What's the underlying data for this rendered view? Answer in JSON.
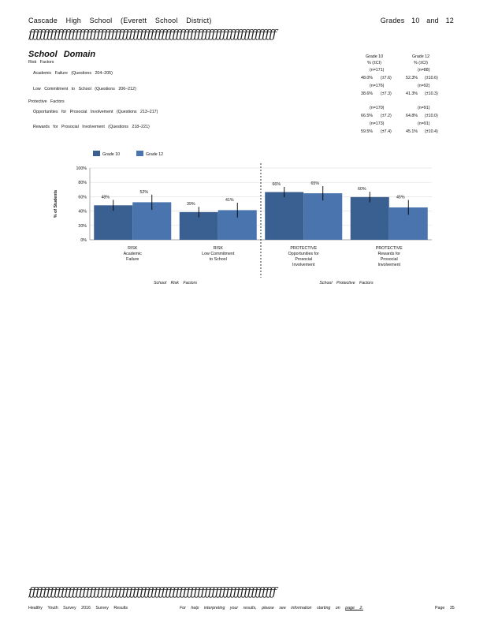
{
  "header": {
    "school": "Cascade High School (Everett School District)",
    "grades": "Grades 10 and 12"
  },
  "decorative_rule": "ƒƒƒƒƒƒƒƒƒƒƒƒƒƒƒƒƒƒƒƒƒƒƒƒƒƒƒƒƒƒƒƒƒƒƒƒƒƒƒƒƒƒƒƒƒƒƒƒƒƒƒƒƒƒƒƒƒƒƒƒƒƒƒƒƒƒƒƒƒ",
  "section": {
    "title": "School Domain",
    "risk_heading": "Risk Factors",
    "protective_heading": "Protective Factors"
  },
  "table": {
    "col_headers": [
      {
        "grade": "Grade 10",
        "unit": "% (±CI)"
      },
      {
        "grade": "Grade 12",
        "unit": "% (±CI)"
      }
    ],
    "rows": [
      {
        "label": "Academic Failure (Questions 204–205)",
        "g10_n": "(n=171)",
        "g10_val": "48.0%",
        "g10_ci": "(±7.6)",
        "g12_n": "(n=88)",
        "g12_val": "52.3%",
        "g12_ci": "(±10.6)"
      },
      {
        "label": "Low Commitment to School (Questions 206–212)",
        "g10_n": "(n=176)",
        "g10_val": "38.6%",
        "g10_ci": "(±7.3)",
        "g12_n": "(n=92)",
        "g12_val": "41.3%",
        "g12_ci": "(±10.3)"
      },
      {
        "label": "Opportunities for Prosocial Involvement (Questions 213–217)",
        "g10_n": "(n=170)",
        "g10_val": "66.5%",
        "g10_ci": "(±7.2)",
        "g12_n": "(n=91)",
        "g12_val": "64.8%",
        "g12_ci": "(±10.0)"
      },
      {
        "label": "Rewards for Prosocial Involvement (Questions 218–221)",
        "g10_n": "(n=173)",
        "g10_val": "59.5%",
        "g10_ci": "(±7.4)",
        "g12_n": "(n=91)",
        "g12_val": "45.1%",
        "g12_ci": "(±10.4)"
      }
    ]
  },
  "chart_data": {
    "type": "bar",
    "ylabel": "% of Students",
    "ylim": [
      0,
      100
    ],
    "yticks": [
      "0%",
      "20%",
      "40%",
      "60%",
      "80%",
      "100%"
    ],
    "legend_placement": "top-left",
    "categories": [
      [
        "RISK",
        "Academic",
        "Failure"
      ],
      [
        "RISK",
        "Low Commitment",
        "to School"
      ],
      [
        "PROTECTIVE",
        "Opportunities for",
        "Prosocial",
        "Involvement"
      ],
      [
        "PROTECTIVE",
        "Rewards for",
        "Prosocial",
        "Involvement"
      ]
    ],
    "series": [
      {
        "name": "Grade 10",
        "color": "#3a5f91",
        "values": [
          48.0,
          38.6,
          66.5,
          59.5
        ],
        "ci": [
          7.6,
          7.3,
          7.2,
          7.4
        ],
        "labels": [
          "48%",
          "39%",
          "66%",
          "60%"
        ]
      },
      {
        "name": "Grade 12",
        "color": "#4a74ad",
        "values": [
          52.3,
          41.3,
          64.8,
          45.1
        ],
        "ci": [
          10.6,
          10.3,
          10.0,
          10.4
        ],
        "labels": [
          "52%",
          "41%",
          "65%",
          "45%"
        ]
      }
    ],
    "group_labels": [
      "School Risk Factors",
      "School Protective Factors"
    ],
    "grid": true
  },
  "footer": {
    "left": "Healthy Youth Survey 2016 Survey Results",
    "middle_prefix": "For help interpreting your results, please see information starting on",
    "middle_link": "page 2.",
    "right": "Page 35"
  }
}
